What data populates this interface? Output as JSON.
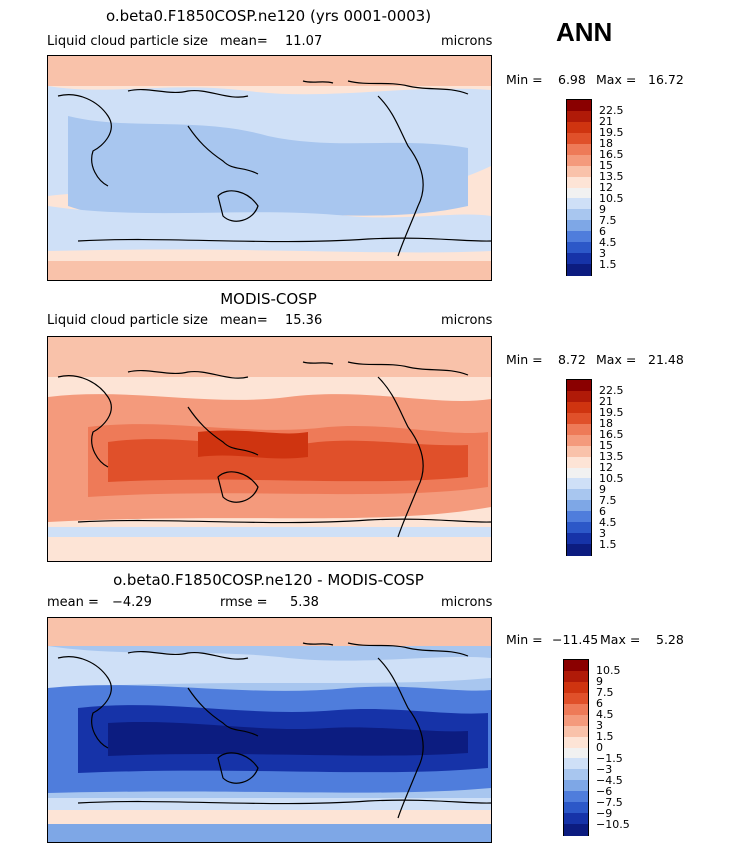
{
  "season": "ANN",
  "panels": [
    {
      "title": "o.beta0.F1850COSP.ne120 (yrs 0001-0003)",
      "left_label": "Liquid cloud particle size",
      "stat_label": "mean=",
      "stat_value": "11.07",
      "units": "microns",
      "min_label": "Min =",
      "min_value": "6.98",
      "max_label": "Max =",
      "max_value": "16.72",
      "colorbar_levels": [
        "22.5",
        "21",
        "19.5",
        "18",
        "16.5",
        "15",
        "13.5",
        "12",
        "10.5",
        "9",
        "7.5",
        "6",
        "4.5",
        "3",
        "1.5"
      ]
    },
    {
      "title": "MODIS-COSP",
      "left_label": "Liquid cloud particle size",
      "stat_label": "mean=",
      "stat_value": "15.36",
      "units": "microns",
      "min_label": "Min =",
      "min_value": "8.72",
      "max_label": "Max =",
      "max_value": "21.48",
      "colorbar_levels": [
        "22.5",
        "21",
        "19.5",
        "18",
        "16.5",
        "15",
        "13.5",
        "12",
        "10.5",
        "9",
        "7.5",
        "6",
        "4.5",
        "3",
        "1.5"
      ]
    },
    {
      "title": "o.beta0.F1850COSP.ne120 - MODIS-COSP",
      "left_label": "mean =",
      "left_value": "−4.29",
      "stat_label": "rmse =",
      "stat_value": "5.38",
      "units": "microns",
      "min_label": "Min =",
      "min_value": "−11.45",
      "max_label": "Max =",
      "max_value": "5.28",
      "colorbar_levels": [
        "10.5",
        "9",
        "7.5",
        "6",
        "4.5",
        "3",
        "1.5",
        "0",
        "−1.5",
        "−3",
        "−4.5",
        "−6",
        "−7.5",
        "−9",
        "−10.5"
      ]
    }
  ],
  "colorbar_colors": [
    "#8a0000",
    "#b01a08",
    "#cf3410",
    "#e0502a",
    "#ee7a58",
    "#f49a7c",
    "#f9c2aa",
    "#fde4d6",
    "#f1f1f1",
    "#cfe0f7",
    "#a8c6ef",
    "#7ea7e6",
    "#4f7ddc",
    "#2c58c8",
    "#1633a8",
    "#0c1c80"
  ]
}
